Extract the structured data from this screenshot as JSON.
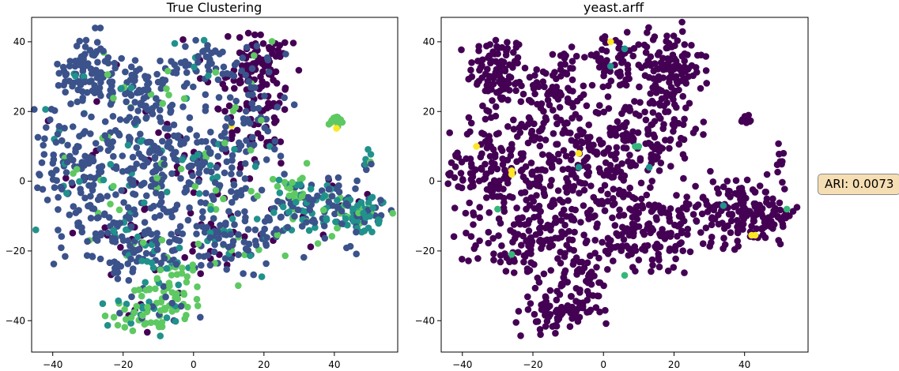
{
  "chart_data": [
    {
      "type": "scatter",
      "title": "True Clustering",
      "xlabel": "",
      "ylabel": "",
      "xlim": [
        -46,
        58
      ],
      "ylim": [
        -49,
        47
      ],
      "x_ticks": [
        -40,
        -20,
        0,
        20,
        40
      ],
      "y_ticks": [
        -40,
        -20,
        0,
        20,
        40
      ],
      "colors": [
        "#440154",
        "#3b528b",
        "#21918c",
        "#5ec962",
        "#fde725"
      ],
      "regions": [
        {
          "cx": -30,
          "cy": 32,
          "sx": 4,
          "sy": 5,
          "n": 90,
          "mix": [
            0.04,
            0.9,
            0.04,
            0.02,
            0
          ]
        },
        {
          "cx": -14,
          "cy": 26,
          "sx": 6,
          "sy": 7,
          "n": 90,
          "mix": [
            0.05,
            0.85,
            0.05,
            0.05,
            0
          ]
        },
        {
          "cx": -33,
          "cy": 5,
          "sx": 6,
          "sy": 9,
          "n": 140,
          "mix": [
            0.06,
            0.8,
            0.09,
            0.05,
            0
          ]
        },
        {
          "cx": -15,
          "cy": 2,
          "sx": 7,
          "sy": 9,
          "n": 150,
          "mix": [
            0.08,
            0.74,
            0.1,
            0.08,
            0
          ]
        },
        {
          "cx": 2,
          "cy": 5,
          "sx": 6,
          "sy": 8,
          "n": 110,
          "mix": [
            0.1,
            0.72,
            0.1,
            0.07,
            0.01
          ]
        },
        {
          "cx": -20,
          "cy": -18,
          "sx": 8,
          "sy": 5,
          "n": 110,
          "mix": [
            0.07,
            0.78,
            0.1,
            0.05,
            0
          ]
        },
        {
          "cx": 3,
          "cy": 34,
          "sx": 5,
          "sy": 4,
          "n": 50,
          "mix": [
            0.15,
            0.75,
            0.05,
            0.05,
            0
          ]
        },
        {
          "cx": 18,
          "cy": 32,
          "sx": 5,
          "sy": 6,
          "n": 130,
          "mix": [
            0.8,
            0.15,
            0.03,
            0.02,
            0
          ]
        },
        {
          "cx": 15,
          "cy": 15,
          "sx": 6,
          "sy": 7,
          "n": 90,
          "mix": [
            0.35,
            0.55,
            0.05,
            0.05,
            0
          ]
        },
        {
          "cx": 10,
          "cy": -15,
          "sx": 9,
          "sy": 6,
          "n": 140,
          "mix": [
            0.18,
            0.62,
            0.12,
            0.08,
            0
          ]
        },
        {
          "cx": 35,
          "cy": -8,
          "sx": 8,
          "sy": 5,
          "n": 130,
          "mix": [
            0.1,
            0.45,
            0.3,
            0.15,
            0
          ]
        },
        {
          "cx": 47,
          "cy": -10,
          "sx": 4,
          "sy": 3,
          "n": 70,
          "mix": [
            0.05,
            0.35,
            0.45,
            0.15,
            0
          ]
        },
        {
          "cx": -13,
          "cy": -37,
          "sx": 6,
          "sy": 3,
          "n": 80,
          "mix": [
            0.03,
            0.1,
            0.15,
            0.72,
            0
          ]
        },
        {
          "cx": -6,
          "cy": -28,
          "sx": 4,
          "sy": 4,
          "n": 40,
          "mix": [
            0.05,
            0.1,
            0.2,
            0.65,
            0
          ]
        },
        {
          "cx": 28,
          "cy": -2,
          "sx": 2,
          "sy": 2,
          "n": 18,
          "mix": [
            0,
            0.05,
            0.15,
            0.8,
            0
          ]
        },
        {
          "cx": 40.5,
          "cy": 17.5,
          "sx": 0.8,
          "sy": 1,
          "n": 16,
          "mix": [
            0,
            0,
            0.05,
            0.6,
            0.35
          ]
        },
        {
          "cx": 50,
          "cy": 6,
          "sx": 1,
          "sy": 2,
          "n": 8,
          "mix": [
            0,
            0.2,
            0.5,
            0.1,
            0.2
          ]
        }
      ]
    },
    {
      "type": "scatter",
      "title": "yeast.arff",
      "xlabel": "",
      "ylabel": "",
      "xlim": [
        -46,
        58
      ],
      "ylim": [
        -49,
        47
      ],
      "x_ticks": [
        -40,
        -20,
        0,
        20,
        40
      ],
      "y_ticks": [
        -40,
        -20,
        0,
        20,
        40
      ],
      "colors": [
        "#440154",
        "#21918c",
        "#35b779",
        "#fde725"
      ],
      "regions": [
        {
          "cx": -30,
          "cy": 32,
          "sx": 4,
          "sy": 5,
          "n": 90
        },
        {
          "cx": -14,
          "cy": 26,
          "sx": 6,
          "sy": 7,
          "n": 90
        },
        {
          "cx": -33,
          "cy": 5,
          "sx": 6,
          "sy": 9,
          "n": 140
        },
        {
          "cx": -15,
          "cy": 2,
          "sx": 7,
          "sy": 9,
          "n": 150
        },
        {
          "cx": 2,
          "cy": 5,
          "sx": 6,
          "sy": 8,
          "n": 110
        },
        {
          "cx": -20,
          "cy": -18,
          "sx": 8,
          "sy": 5,
          "n": 110
        },
        {
          "cx": 3,
          "cy": 34,
          "sx": 5,
          "sy": 4,
          "n": 50
        },
        {
          "cx": 18,
          "cy": 32,
          "sx": 5,
          "sy": 6,
          "n": 130
        },
        {
          "cx": 15,
          "cy": 15,
          "sx": 6,
          "sy": 7,
          "n": 90
        },
        {
          "cx": 10,
          "cy": -15,
          "sx": 9,
          "sy": 6,
          "n": 140
        },
        {
          "cx": 35,
          "cy": -8,
          "sx": 8,
          "sy": 5,
          "n": 130
        },
        {
          "cx": 47,
          "cy": -10,
          "sx": 4,
          "sy": 3,
          "n": 70
        },
        {
          "cx": -13,
          "cy": -37,
          "sx": 6,
          "sy": 3,
          "n": 80
        },
        {
          "cx": -6,
          "cy": -28,
          "sx": 4,
          "sy": 4,
          "n": 40
        },
        {
          "cx": 40.5,
          "cy": 17.5,
          "sx": 0.8,
          "sy": 0.8,
          "n": 14
        },
        {
          "cx": 50.5,
          "cy": 7,
          "sx": 0.8,
          "sy": 2.5,
          "n": 8
        }
      ],
      "highlights": [
        {
          "x": 2,
          "y": 40,
          "c": 3
        },
        {
          "x": -7,
          "y": 8,
          "c": 3
        },
        {
          "x": -26,
          "y": 3,
          "c": 3
        },
        {
          "x": -26,
          "y": 2,
          "c": 3
        },
        {
          "x": 42,
          "y": -15.5,
          "c": 3
        },
        {
          "x": 43,
          "y": -15.5,
          "c": 3
        },
        {
          "x": -36,
          "y": 10,
          "c": 3
        },
        {
          "x": 2,
          "y": 33,
          "c": 1
        },
        {
          "x": 6,
          "y": 38,
          "c": 1
        },
        {
          "x": 34,
          "y": -7,
          "c": 1
        },
        {
          "x": 13,
          "y": 4,
          "c": 1
        },
        {
          "x": -7,
          "y": 4,
          "c": 1
        },
        {
          "x": 9,
          "y": 10,
          "c": 2
        },
        {
          "x": 10,
          "y": 10,
          "c": 2
        },
        {
          "x": -30,
          "y": -8,
          "c": 2
        },
        {
          "x": -26,
          "y": -21,
          "c": 2
        },
        {
          "x": 6,
          "y": -27,
          "c": 2
        },
        {
          "x": 52,
          "y": -8,
          "c": 2
        }
      ]
    }
  ],
  "annotation": {
    "ari_text": "ARI: 0.0073"
  }
}
